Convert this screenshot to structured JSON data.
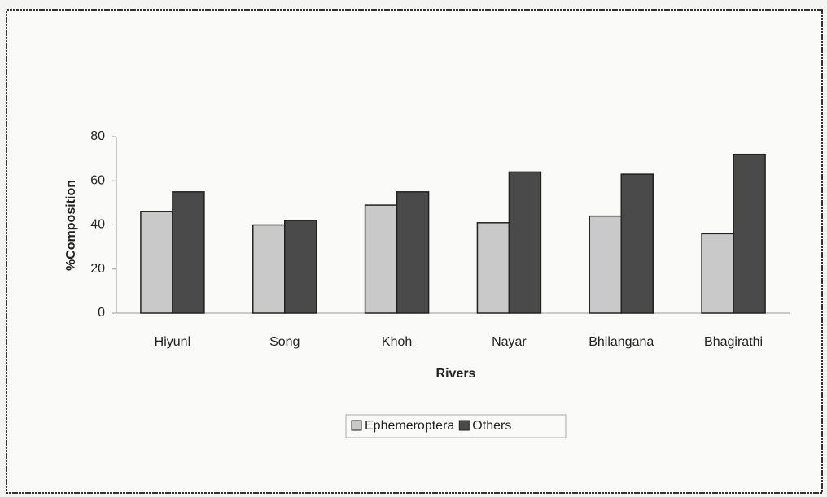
{
  "chart_data": {
    "type": "bar",
    "categories": [
      "Hiyunl",
      "Song",
      "Khoh",
      "Nayar",
      "Bhilangana",
      "Bhagirathi"
    ],
    "series": [
      {
        "name": "Ephemeroptera",
        "color": "#c9c9c9",
        "values": [
          46,
          40,
          49,
          41,
          44,
          36
        ]
      },
      {
        "name": "Others",
        "color": "#4a4a4a",
        "values": [
          55,
          42,
          55,
          64,
          63,
          72
        ]
      }
    ],
    "ylim": [
      0,
      80
    ],
    "yticks": [
      0,
      20,
      40,
      60,
      80
    ],
    "xlabel": "Rivers",
    "ylabel": "%Composition",
    "legend": "bottom"
  }
}
